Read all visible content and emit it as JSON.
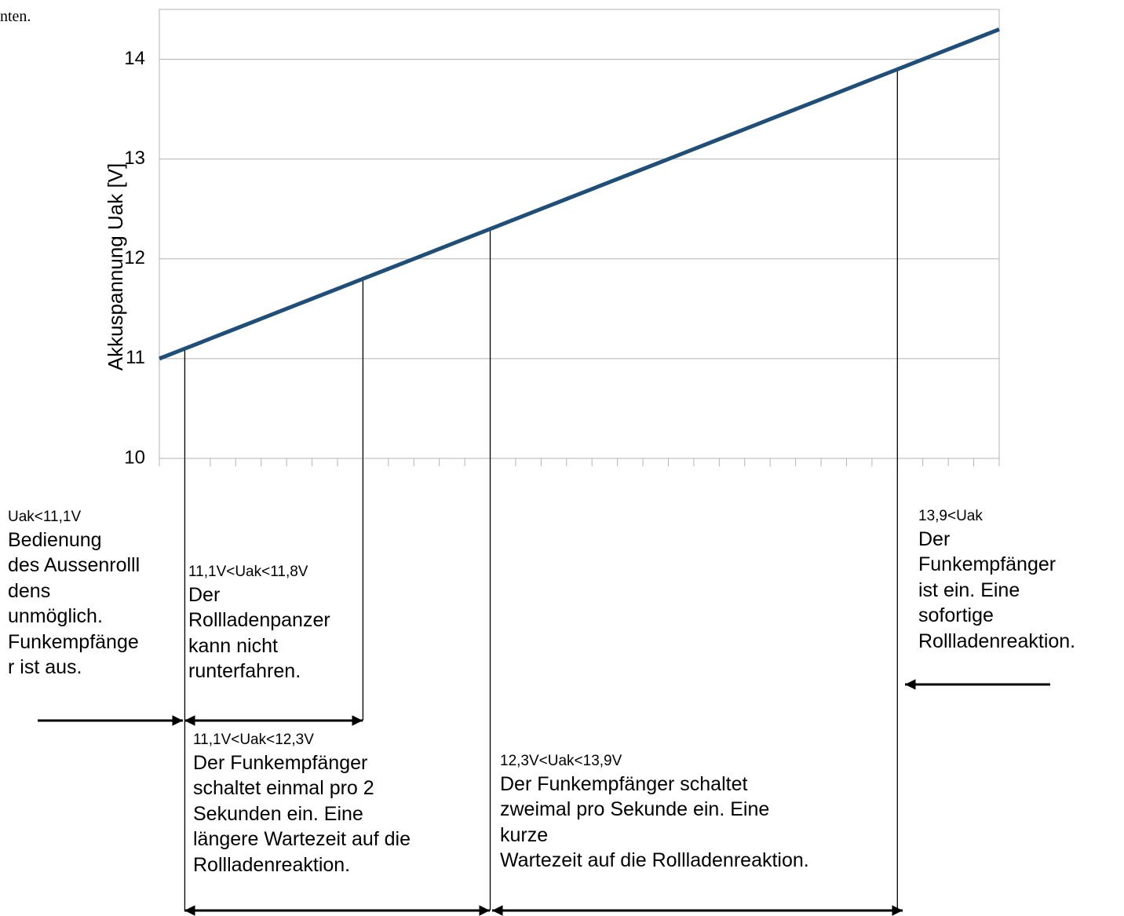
{
  "page_fragment": "nten.",
  "chart_data": {
    "type": "line",
    "title": "",
    "xlabel": "",
    "ylabel": "Akkuspannung Uak [V]",
    "ylim": [
      10,
      14.5
    ],
    "yticks": [
      10,
      11,
      12,
      13,
      14
    ],
    "ytick_labels": [
      "10",
      "11",
      "12",
      "13",
      "14"
    ],
    "grid": true,
    "x": [
      0,
      5,
      10,
      15,
      20,
      25,
      30,
      35,
      40,
      45,
      50,
      55,
      60,
      65,
      70,
      75,
      80,
      85,
      90,
      95,
      100,
      105,
      110,
      115,
      120,
      125,
      130,
      135,
      140,
      145,
      150,
      155,
      160,
      165
    ],
    "series": [
      {
        "color": "#1f4e79",
        "values": [
          11.0,
          11.1,
          11.2,
          11.3,
          11.4,
          11.5,
          11.6,
          11.7,
          11.8,
          11.9,
          12.0,
          12.1,
          12.2,
          12.3,
          12.4,
          12.5,
          12.6,
          12.7,
          12.8,
          12.9,
          13.0,
          13.1,
          13.2,
          13.3,
          13.4,
          13.5,
          13.6,
          13.7,
          13.8,
          13.9,
          14.0,
          14.1,
          14.2,
          14.3
        ]
      }
    ],
    "markers": [
      {
        "x": 5,
        "y": 11.1
      },
      {
        "x": 40,
        "y": 11.8
      },
      {
        "x": 65,
        "y": 12.3
      },
      {
        "x": 145,
        "y": 13.9
      }
    ],
    "annotations": [
      {
        "condition": "Uak<11,1V",
        "lines": [
          "Bedienung",
          "des Aussenrolll",
          "dens",
          "unmöglich.",
          "Funkempfänge",
          "r ist aus."
        ]
      },
      {
        "condition": "11,1V<Uak<11,8V",
        "lines": [
          "Der",
          "Rollladenpanzer",
          "kann nicht",
          "runterfahren."
        ]
      },
      {
        "condition": "11,1V<Uak<12,3V",
        "lines": [
          "Der Funkempfänger",
          "schaltet einmal pro 2",
          "Sekunden ein. Eine",
          "längere Wartezeit auf die",
          "Rollladenreaktion."
        ]
      },
      {
        "condition": "12,3V<Uak<13,9V",
        "lines": [
          "Der Funkempfänger schaltet",
          "zweimal pro Sekunde ein. Eine",
          "kurze",
          "Wartezeit auf die Rollladenreaktion."
        ]
      },
      {
        "condition": "13,9<Uak",
        "lines": [
          "Der",
          "Funkempfänger",
          "ist ein. Eine",
          "sofortige",
          "Rollladenreaktion."
        ]
      }
    ]
  }
}
